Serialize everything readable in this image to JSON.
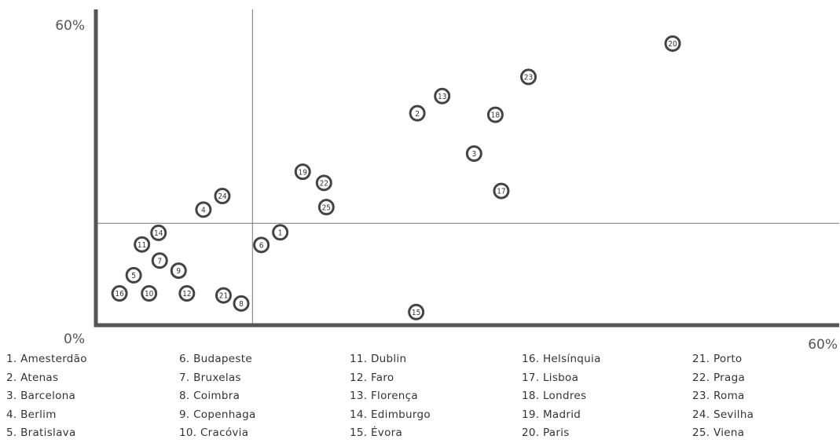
{
  "chart_data": {
    "type": "scatter",
    "xlim": [
      0,
      60
    ],
    "ylim": [
      0,
      60
    ],
    "x_min_label": "0%",
    "x_max_label": "60%",
    "y_max_label": "60%",
    "reference_lines": {
      "x": 13.25,
      "y": 20.2
    },
    "grid": false,
    "points": [
      {
        "id": "1",
        "x": 15.6,
        "y": 18.4
      },
      {
        "id": "2",
        "x": 27.2,
        "y": 42.0
      },
      {
        "id": "3",
        "x": 32.0,
        "y": 34.0
      },
      {
        "id": "4",
        "x": 9.1,
        "y": 22.9
      },
      {
        "id": "5",
        "x": 3.2,
        "y": 9.9
      },
      {
        "id": "6",
        "x": 14.0,
        "y": 15.9
      },
      {
        "id": "7",
        "x": 5.4,
        "y": 12.8
      },
      {
        "id": "8",
        "x": 12.3,
        "y": 4.3
      },
      {
        "id": "9",
        "x": 7.0,
        "y": 10.8
      },
      {
        "id": "10",
        "x": 4.5,
        "y": 6.3
      },
      {
        "id": "11",
        "x": 3.9,
        "y": 16.0
      },
      {
        "id": "12",
        "x": 7.7,
        "y": 6.3
      },
      {
        "id": "13",
        "x": 29.3,
        "y": 45.4
      },
      {
        "id": "14",
        "x": 5.3,
        "y": 18.3
      },
      {
        "id": "15",
        "x": 27.1,
        "y": 2.6
      },
      {
        "id": "16",
        "x": 2.0,
        "y": 6.3
      },
      {
        "id": "17",
        "x": 34.3,
        "y": 26.6
      },
      {
        "id": "18",
        "x": 33.8,
        "y": 41.7
      },
      {
        "id": "19",
        "x": 17.5,
        "y": 30.4
      },
      {
        "id": "20",
        "x": 48.8,
        "y": 55.8
      },
      {
        "id": "21",
        "x": 10.8,
        "y": 5.9
      },
      {
        "id": "22",
        "x": 19.3,
        "y": 28.2
      },
      {
        "id": "23",
        "x": 36.6,
        "y": 49.2
      },
      {
        "id": "24",
        "x": 10.7,
        "y": 25.6
      },
      {
        "id": "25",
        "x": 19.5,
        "y": 23.4
      }
    ],
    "legend": [
      [
        "1. Amesterdão",
        "2. Atenas",
        "3. Barcelona",
        "4. Berlim",
        "5. Bratislava"
      ],
      [
        "6. Budapeste",
        "7. Bruxelas",
        "8. Coimbra",
        "9. Copenhaga",
        "10. Cracóvia"
      ],
      [
        "11. Dublin",
        "12. Faro",
        "13. Florença",
        "14. Edimburgo",
        "15. Évora"
      ],
      [
        "16. Helsínquia",
        "17. Lisboa",
        "18. Londres",
        "19. Madrid",
        "20. Paris"
      ],
      [
        "21. Porto",
        "22. Praga",
        "23. Roma",
        "24. Sevilha",
        "25. Viena"
      ]
    ],
    "colors": {
      "axis": "#555555",
      "marker_stroke": "#444444",
      "text": "#333333"
    }
  }
}
